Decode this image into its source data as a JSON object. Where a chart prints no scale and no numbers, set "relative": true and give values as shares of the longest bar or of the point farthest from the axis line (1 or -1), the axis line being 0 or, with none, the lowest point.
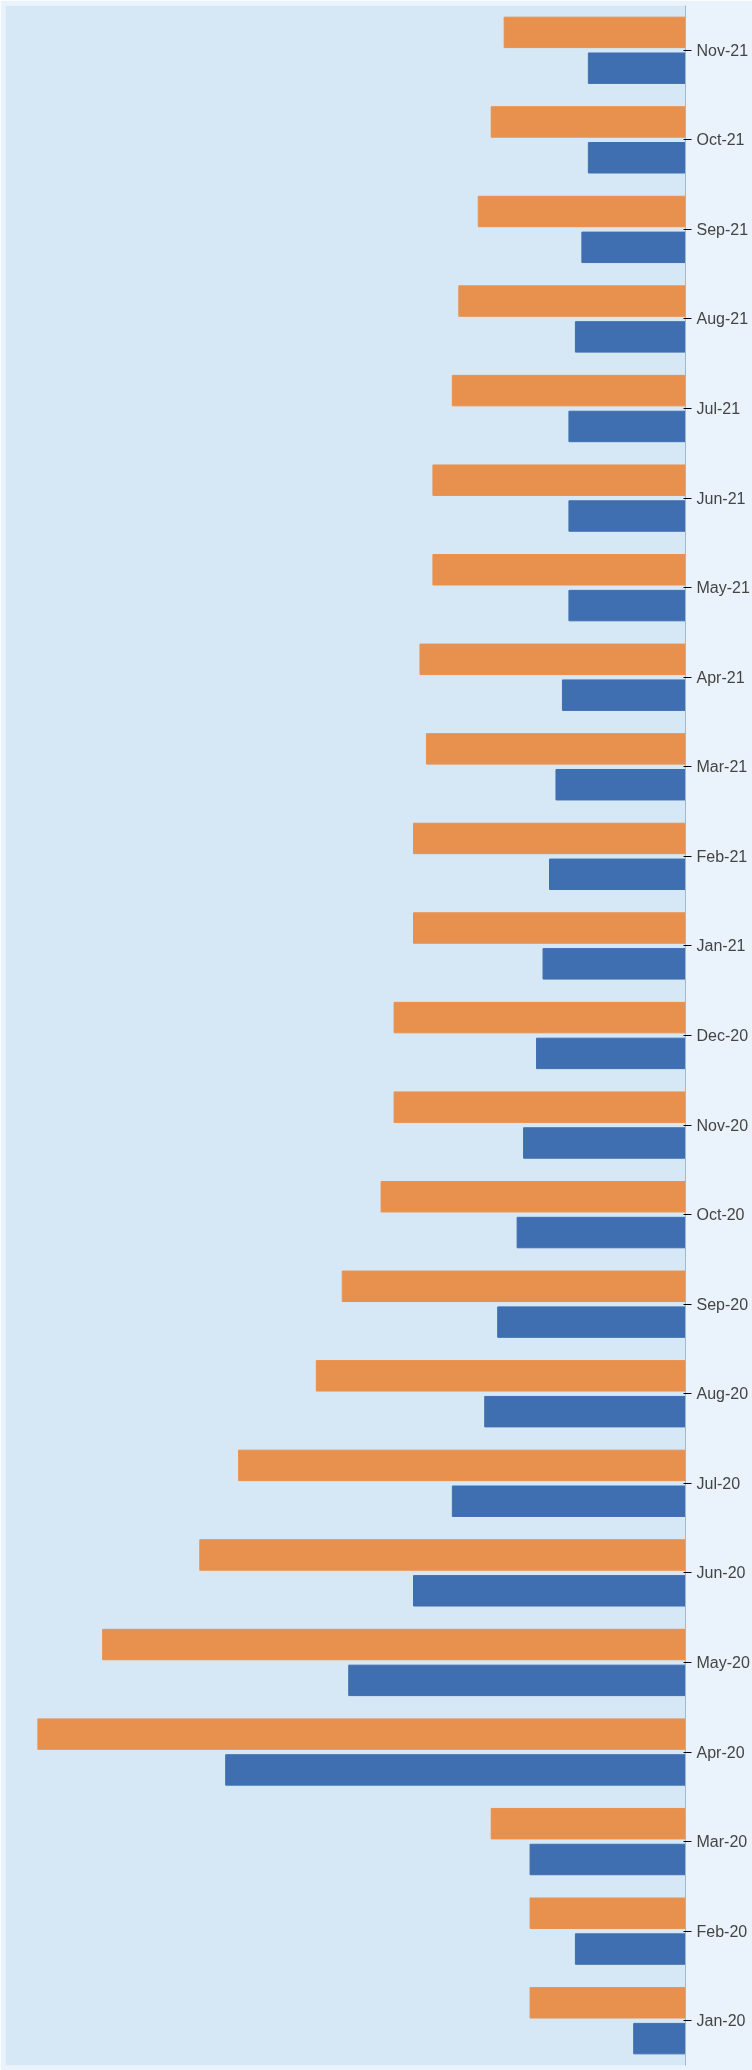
{
  "chart_data": {
    "type": "bar",
    "orientation": "horizontal",
    "relative": true,
    "categories": [
      "Nov-21",
      "Oct-21",
      "Sep-21",
      "Aug-21",
      "Jul-21",
      "Jun-21",
      "May-21",
      "Apr-21",
      "Mar-21",
      "Feb-21",
      "Jan-21",
      "Dec-20",
      "Nov-20",
      "Oct-20",
      "Sep-20",
      "Aug-20",
      "Jul-20",
      "Jun-20",
      "May-20",
      "Apr-20",
      "Mar-20",
      "Feb-20",
      "Jan-20"
    ],
    "series": [
      {
        "color": "#e8914f",
        "values": [
          0.28,
          0.3,
          0.32,
          0.35,
          0.36,
          0.39,
          0.39,
          0.41,
          0.4,
          0.42,
          0.42,
          0.45,
          0.45,
          0.47,
          0.53,
          0.57,
          0.69,
          0.75,
          0.9,
          1.0,
          0.3,
          0.24,
          0.24
        ]
      },
      {
        "color": "#3f6fb0",
        "values": [
          0.15,
          0.15,
          0.16,
          0.17,
          0.18,
          0.18,
          0.18,
          0.19,
          0.2,
          0.21,
          0.22,
          0.23,
          0.25,
          0.26,
          0.29,
          0.31,
          0.36,
          0.42,
          0.52,
          0.71,
          0.24,
          0.17,
          0.08
        ]
      }
    ]
  }
}
